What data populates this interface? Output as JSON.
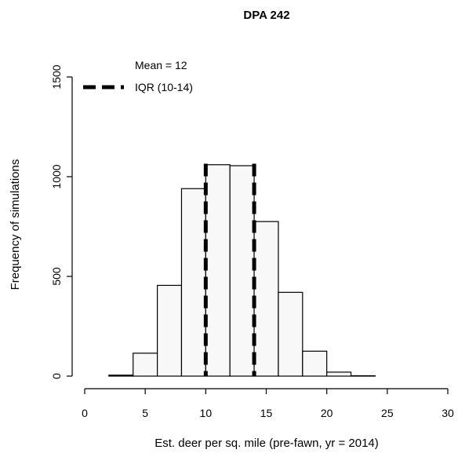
{
  "chart_data": {
    "type": "bar",
    "title": "DPA 242",
    "xlabel": "Est. deer per sq. mile (pre-fawn, yr = 2014)",
    "ylabel": "Frequency of simulations",
    "xlim": [
      0,
      30
    ],
    "ylim": [
      0,
      1500
    ],
    "xticks": [
      "0",
      "5",
      "10",
      "15",
      "20",
      "25",
      "30"
    ],
    "yticks": [
      "0",
      "500",
      "1000",
      "1500"
    ],
    "bins": [
      {
        "x0": 2,
        "x1": 4,
        "value": 5
      },
      {
        "x0": 4,
        "x1": 6,
        "value": 115
      },
      {
        "x0": 6,
        "x1": 8,
        "value": 455
      },
      {
        "x0": 8,
        "x1": 10,
        "value": 940
      },
      {
        "x0": 10,
        "x1": 12,
        "value": 1060
      },
      {
        "x0": 12,
        "x1": 14,
        "value": 1055
      },
      {
        "x0": 14,
        "x1": 16,
        "value": 775
      },
      {
        "x0": 16,
        "x1": 18,
        "value": 420
      },
      {
        "x0": 18,
        "x1": 20,
        "value": 125
      },
      {
        "x0": 20,
        "x1": 22,
        "value": 20
      },
      {
        "x0": 22,
        "x1": 24,
        "value": 2
      }
    ],
    "iqr_lines": [
      10,
      14
    ],
    "legend": {
      "position": "top-left",
      "mean_label": "Mean = 12",
      "iqr_label": "IQR (10-14)"
    },
    "bar_fill": "#f8f8f8",
    "bar_stroke": "#000000",
    "line_color": "#000000",
    "grid": false
  }
}
